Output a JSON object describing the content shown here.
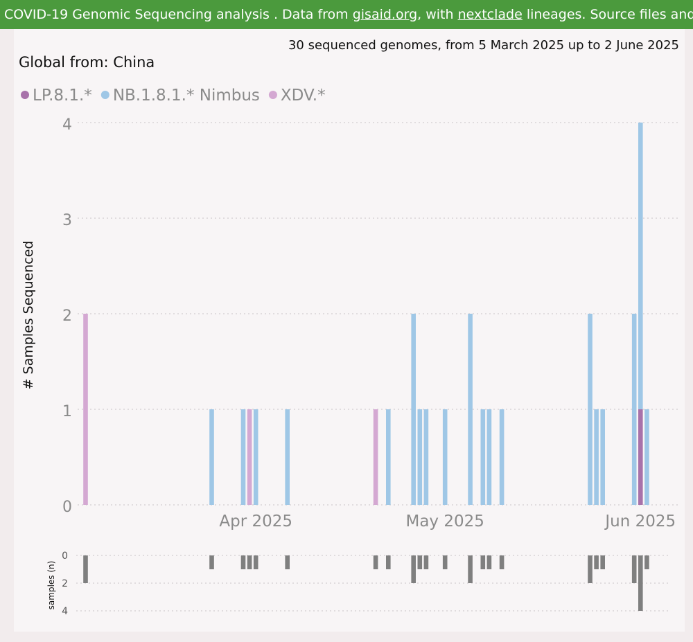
{
  "banner": {
    "text_1": "COVID-19 Genomic Sequencing analysis . Data from ",
    "link_1": "gisaid.org",
    "text_2": ", with ",
    "link_2": "nextclade",
    "text_3": " lineages. Source files and more info"
  },
  "summary": "30 sequenced genomes, from 5 March 2025 up to 2 June 2025",
  "colors": {
    "banner": "#4b9a3d",
    "LP.8.1.*": "#a872aa",
    "NB.1.8.1.* Nimbus": "#9fc7e6",
    "XDV.*": "#d4a8d2",
    "mini_bars": "#7f7f7f"
  },
  "chart_data": [
    {
      "type": "bar",
      "stacked": true,
      "title": "Global from: China",
      "xlabel": "",
      "ylabel": "# Samples Sequenced",
      "ylim": [
        0,
        4
      ],
      "yticks": [
        0,
        1,
        2,
        3,
        4
      ],
      "xlim": [
        "2025-03-05",
        "2025-06-03"
      ],
      "x_tick_labels": [
        {
          "date": "2025-04-01",
          "label": "Apr 2025"
        },
        {
          "date": "2025-05-01",
          "label": "May 2025"
        },
        {
          "date": "2025-06-01",
          "label": "Jun 2025"
        }
      ],
      "grid": true,
      "legend_position": "top-left",
      "series": [
        {
          "name": "LP.8.1.*",
          "color": "#a872aa",
          "points": [
            [
              "2025-06-01",
              1
            ]
          ]
        },
        {
          "name": "NB.1.8.1.* Nimbus",
          "color": "#9fc7e6",
          "points": [
            [
              "2025-03-25",
              1
            ],
            [
              "2025-03-30",
              1
            ],
            [
              "2025-04-01",
              1
            ],
            [
              "2025-04-06",
              1
            ],
            [
              "2025-04-22",
              1
            ],
            [
              "2025-04-26",
              2
            ],
            [
              "2025-04-27",
              1
            ],
            [
              "2025-04-28",
              1
            ],
            [
              "2025-05-01",
              1
            ],
            [
              "2025-05-05",
              2
            ],
            [
              "2025-05-07",
              1
            ],
            [
              "2025-05-08",
              1
            ],
            [
              "2025-05-10",
              1
            ],
            [
              "2025-05-24",
              2
            ],
            [
              "2025-05-25",
              1
            ],
            [
              "2025-05-26",
              1
            ],
            [
              "2025-05-31",
              2
            ],
            [
              "2025-06-01",
              3
            ],
            [
              "2025-06-02",
              1
            ]
          ]
        },
        {
          "name": "XDV.*",
          "color": "#d4a8d2",
          "points": [
            [
              "2025-03-05",
              2
            ],
            [
              "2025-03-31",
              1
            ],
            [
              "2025-04-20",
              1
            ]
          ]
        }
      ]
    },
    {
      "type": "bar",
      "title": "",
      "ylabel": "samples (n)",
      "ylim": [
        0,
        4
      ],
      "yticks": [
        0,
        2,
        4
      ],
      "inverted": true,
      "grid": true,
      "x": [
        "2025-03-05",
        "2025-03-25",
        "2025-03-30",
        "2025-03-31",
        "2025-04-01",
        "2025-04-06",
        "2025-04-20",
        "2025-04-22",
        "2025-04-26",
        "2025-04-27",
        "2025-04-28",
        "2025-05-01",
        "2025-05-05",
        "2025-05-07",
        "2025-05-08",
        "2025-05-10",
        "2025-05-24",
        "2025-05-25",
        "2025-05-26",
        "2025-05-31",
        "2025-06-01",
        "2025-06-02"
      ],
      "values": [
        2,
        1,
        1,
        1,
        1,
        1,
        1,
        1,
        2,
        1,
        1,
        1,
        2,
        1,
        1,
        1,
        2,
        1,
        1,
        2,
        4,
        1
      ]
    }
  ]
}
